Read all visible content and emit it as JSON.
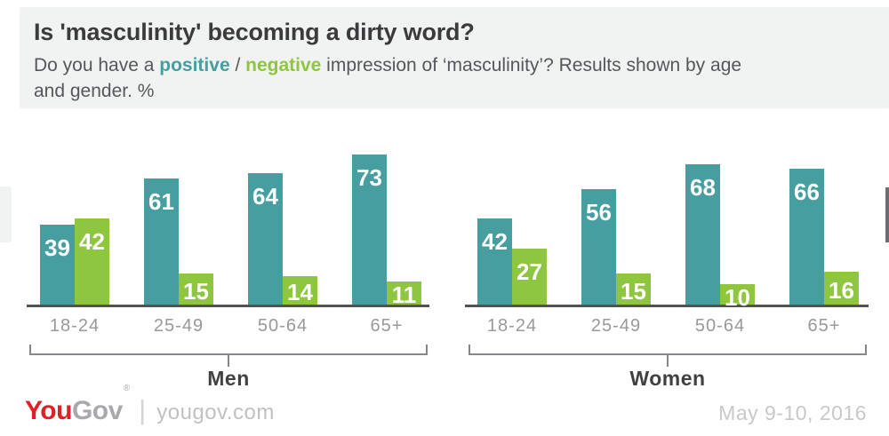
{
  "header": {
    "title": "Is 'masculinity' becoming a dirty word?",
    "subtitle": {
      "prefix": "Do you have a ",
      "positive_word": "positive",
      "separator": " / ",
      "negative_word": "negative",
      "suffix_line1": " impression of ‘masculinity’? Results shown by age",
      "suffix_line2": "and gender. %"
    }
  },
  "chart_data": {
    "type": "bar",
    "title": "Is 'masculinity' becoming a dirty word?",
    "unit": "%",
    "ylim": [
      0,
      100
    ],
    "grid": false,
    "legend": "inline-in-subtitle",
    "value_labels": "white, inside top of bars",
    "categories": [
      "18-24",
      "25-49",
      "50-64",
      "65+"
    ],
    "colors": {
      "positive": "#469ea0",
      "negative": "#8ec63f"
    },
    "groups": [
      {
        "label": "Men",
        "series": [
          {
            "name": "positive",
            "values": [
              39,
              61,
              64,
              73
            ]
          },
          {
            "name": "negative",
            "values": [
              42,
              15,
              14,
              11
            ]
          }
        ]
      },
      {
        "label": "Women",
        "series": [
          {
            "name": "positive",
            "values": [
              42,
              56,
              68,
              66
            ]
          },
          {
            "name": "negative",
            "values": [
              27,
              15,
              10,
              16
            ]
          }
        ]
      }
    ]
  },
  "footer": {
    "logo_you": "You",
    "logo_gov": "Gov",
    "logo_mark": "®",
    "divider": "|",
    "site": "yougov.com",
    "date": "May 9-10, 2016"
  }
}
